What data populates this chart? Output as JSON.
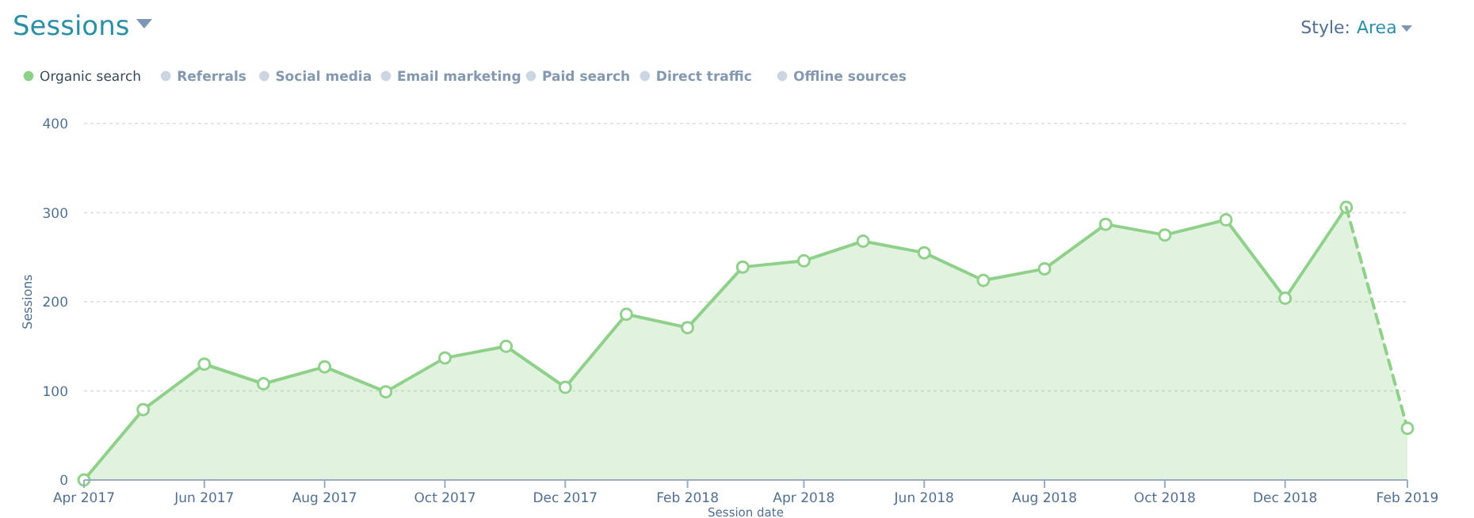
{
  "chart_data": {
    "type": "area",
    "title": "Sessions",
    "ylabel": "Sessions",
    "xlabel": "Session date",
    "x": [
      "2017-04",
      "2017-05",
      "2017-06",
      "2017-07",
      "2017-08",
      "2017-09",
      "2017-10",
      "2017-11",
      "2017-12",
      "2018-01",
      "2018-02",
      "2018-03",
      "2018-04",
      "2018-05",
      "2018-06",
      "2018-07",
      "2018-08",
      "2018-09",
      "2018-10",
      "2018-11",
      "2018-12",
      "2019-01",
      "2019-02"
    ],
    "series": [
      {
        "name": "Organic search",
        "color": "#8fd18a",
        "values": [
          0,
          79,
          130,
          108,
          127,
          99,
          137,
          150,
          104,
          186,
          171,
          239,
          246,
          268,
          255,
          224,
          237,
          287,
          275,
          292,
          204,
          306,
          null
        ]
      },
      {
        "color": "#8fd18a",
        "line_style": "dashed",
        "values": [
          null,
          null,
          null,
          null,
          null,
          null,
          null,
          null,
          null,
          null,
          null,
          null,
          null,
          null,
          null,
          null,
          null,
          null,
          null,
          null,
          null,
          306,
          58
        ]
      },
      {
        "name": "Referrals",
        "color": "#cbd6e2",
        "values": [
          null,
          null,
          null,
          null,
          null,
          null,
          null,
          null,
          null,
          null,
          null,
          null,
          null,
          null,
          null,
          null,
          null,
          null,
          null,
          null,
          null,
          null,
          null
        ]
      },
      {
        "name": "Social media",
        "color": "#cbd6e2",
        "values": [
          null,
          null,
          null,
          null,
          null,
          null,
          null,
          null,
          null,
          null,
          null,
          null,
          null,
          null,
          null,
          null,
          null,
          null,
          null,
          null,
          null,
          null,
          null
        ]
      },
      {
        "name": "Email marketing",
        "color": "#cbd6e2",
        "values": [
          null,
          null,
          null,
          null,
          null,
          null,
          null,
          null,
          null,
          null,
          null,
          null,
          null,
          null,
          null,
          null,
          null,
          null,
          null,
          null,
          null,
          null,
          null
        ]
      },
      {
        "name": "Paid search",
        "color": "#cbd6e2",
        "values": [
          null,
          null,
          null,
          null,
          null,
          null,
          null,
          null,
          null,
          null,
          null,
          null,
          null,
          null,
          null,
          null,
          null,
          null,
          null,
          null,
          null,
          null,
          null
        ]
      },
      {
        "name": "Direct traffic",
        "color": "#cbd6e2",
        "values": [
          null,
          null,
          null,
          null,
          null,
          null,
          null,
          null,
          null,
          null,
          null,
          null,
          null,
          null,
          null,
          null,
          null,
          null,
          null,
          null,
          null,
          null,
          null
        ]
      },
      {
        "name": "Offline sources",
        "color": "#cbd6e2",
        "values": [
          null,
          null,
          null,
          null,
          null,
          null,
          null,
          null,
          null,
          null,
          null,
          null,
          null,
          null,
          null,
          null,
          null,
          null,
          null,
          null,
          null,
          null,
          null
        ]
      }
    ],
    "xlim": [
      "2017-04",
      "2019-02"
    ],
    "xticks": [
      {
        "value": "2017-04",
        "label": "Apr 2017"
      },
      {
        "value": "2017-06",
        "label": "Jun 2017"
      },
      {
        "value": "2017-08",
        "label": "Aug 2017"
      },
      {
        "value": "2017-10",
        "label": "Oct 2017"
      },
      {
        "value": "2017-12",
        "label": "Dec 2017"
      },
      {
        "value": "2018-02",
        "label": "Feb 2018"
      },
      {
        "value": "2018-04",
        "label": "Apr 2018"
      },
      {
        "value": "2018-06",
        "label": "Jun 2018"
      },
      {
        "value": "2018-08",
        "label": "Aug 2018"
      },
      {
        "value": "2018-10",
        "label": "Oct 2018"
      },
      {
        "value": "2018-12",
        "label": "Dec 2018"
      },
      {
        "value": "2019-02",
        "label": "Feb 2019"
      }
    ],
    "ylim": [
      0,
      400
    ],
    "yticks": [
      0,
      100,
      200,
      300,
      400
    ],
    "grid": "y",
    "legend": "top left",
    "marker": "circle",
    "line_style": "solid",
    "annotations": [
      "Style:",
      "Area"
    ]
  }
}
